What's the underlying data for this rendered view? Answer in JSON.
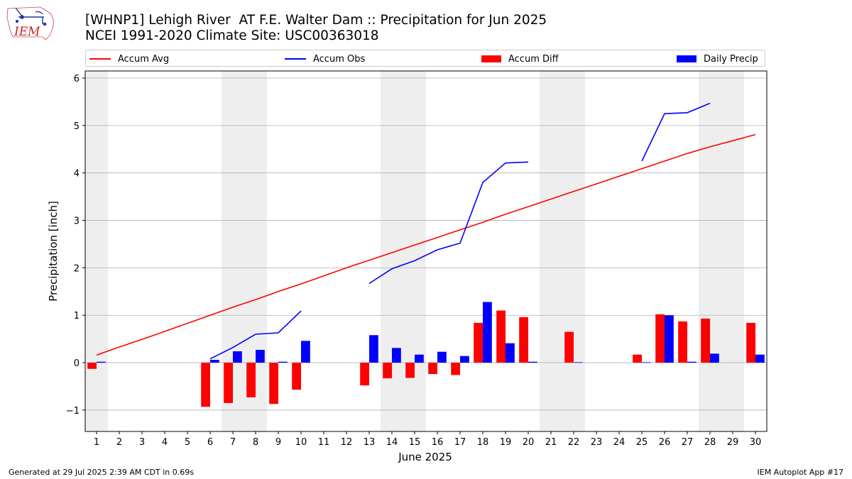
{
  "header": {
    "title": "[WHNP1] Lehigh River  AT F.E. Walter Dam :: Precipitation for Jun 2025",
    "subtitle": "NCEI 1991-2020 Climate Site: USC00363018",
    "logo_text": "IEM"
  },
  "legend": [
    {
      "label": "Accum Avg",
      "kind": "line",
      "color": "#ff0000"
    },
    {
      "label": "Accum Obs",
      "kind": "line",
      "color": "#0000ff"
    },
    {
      "label": "Accum Diff",
      "kind": "bar",
      "color": "#ff0000"
    },
    {
      "label": "Daily Precip",
      "kind": "bar",
      "color": "#0000ff"
    }
  ],
  "footer": {
    "left": "Generated at 29 Jul 2025 2:39 AM CDT in 0.69s",
    "right": "IEM Autoplot App #17"
  },
  "chart_data": {
    "type": "bar",
    "xlabel": "June 2025",
    "ylabel": "Precipitation [inch]",
    "ylim": [
      -1.45,
      6.15
    ],
    "yticks": [
      -1,
      0,
      1,
      2,
      3,
      4,
      5,
      6
    ],
    "ytick_labels": [
      "−1",
      "0",
      "1",
      "2",
      "3",
      "4",
      "5",
      "6"
    ],
    "x": [
      1,
      2,
      3,
      4,
      5,
      6,
      7,
      8,
      9,
      10,
      11,
      12,
      13,
      14,
      15,
      16,
      17,
      18,
      19,
      20,
      21,
      22,
      23,
      24,
      25,
      26,
      27,
      28,
      29,
      30
    ],
    "weekend_days": [
      1,
      7,
      8,
      14,
      15,
      21,
      22,
      28,
      29
    ],
    "grid": "horizontal",
    "series": [
      {
        "name": "Accum Avg",
        "kind": "line",
        "color": "#ff0000",
        "values": [
          0.16,
          0.33,
          0.49,
          0.66,
          0.83,
          1.0,
          1.17,
          1.33,
          1.5,
          1.66,
          1.83,
          2.0,
          2.16,
          2.32,
          2.48,
          2.64,
          2.8,
          2.96,
          3.13,
          3.29,
          3.45,
          3.61,
          3.77,
          3.93,
          4.09,
          4.25,
          4.41,
          4.55,
          4.68,
          4.81
        ]
      },
      {
        "name": "Accum Obs",
        "kind": "line",
        "color": "#0000ff",
        "values": [
          null,
          null,
          null,
          null,
          null,
          0.08,
          0.32,
          0.6,
          0.63,
          1.09,
          null,
          null,
          1.67,
          1.98,
          2.15,
          2.38,
          2.52,
          3.8,
          4.21,
          4.23,
          null,
          null,
          null,
          null,
          4.25,
          5.25,
          5.27,
          5.47,
          null,
          null
        ]
      },
      {
        "name": "Accum Diff",
        "kind": "bar",
        "color": "#ff0000",
        "values": [
          -0.13,
          null,
          null,
          null,
          null,
          -0.93,
          -0.85,
          -0.73,
          -0.87,
          -0.57,
          null,
          null,
          -0.48,
          -0.33,
          -0.32,
          -0.24,
          -0.26,
          0.84,
          1.1,
          0.96,
          null,
          0.65,
          null,
          null,
          0.17,
          1.02,
          0.87,
          0.93,
          null,
          0.84
        ]
      },
      {
        "name": "Daily Precip",
        "kind": "bar",
        "color": "#0000ff",
        "values": [
          0.02,
          null,
          null,
          null,
          null,
          0.06,
          0.24,
          0.27,
          0.02,
          0.46,
          null,
          null,
          0.58,
          0.31,
          0.17,
          0.23,
          0.14,
          1.28,
          0.41,
          0.02,
          null,
          0.01,
          null,
          null,
          0.01,
          1.0,
          0.02,
          0.19,
          null,
          0.17
        ]
      }
    ]
  }
}
